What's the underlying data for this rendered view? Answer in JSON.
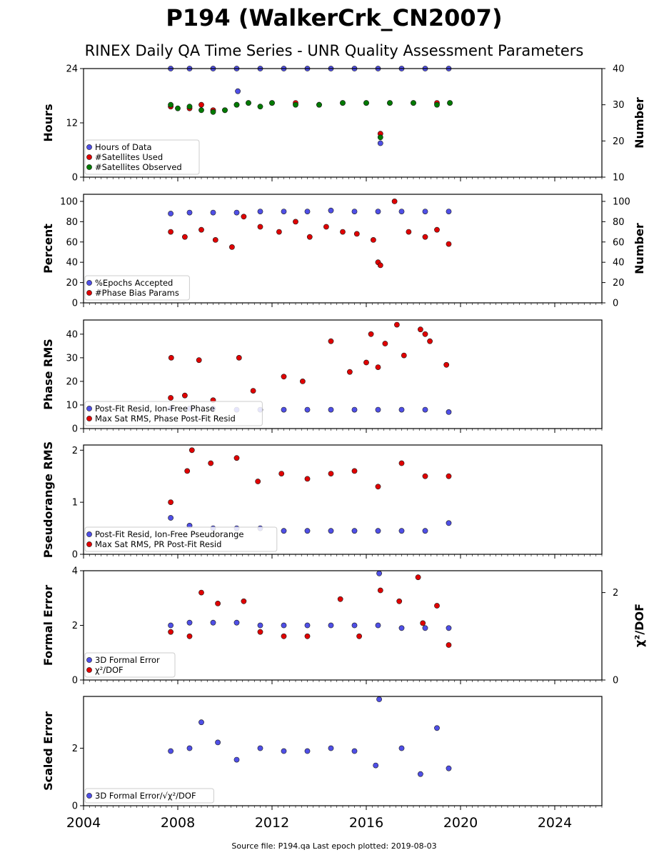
{
  "title": "P194 (WalkerCrk_CN2007)",
  "subtitle": "RINEX Daily QA Time Series - UNR Quality Assessment Parameters",
  "footer": "Source file: P194.qa Last epoch plotted: 2019-08-03",
  "x_axis": {
    "range": [
      2004.0,
      2026.0
    ],
    "ticks": [
      "2004",
      "2008",
      "2012",
      "2016",
      "2020",
      "2024"
    ]
  },
  "panels": [
    {
      "id": "hours",
      "ylabel": "Hours",
      "ylim": [
        0,
        24
      ],
      "yticks": [
        "0",
        "12",
        "24"
      ],
      "y2label": "Number",
      "y2lim": [
        10,
        40
      ],
      "y2ticks": [
        "10",
        "20",
        "30",
        "40"
      ],
      "legend": [
        {
          "label": "Hours of Data",
          "color": "#4f4fe6"
        },
        {
          "label": "#Satellites Used",
          "color": "#e00000"
        },
        {
          "label": "#Satellites Observed",
          "color": "#007a00"
        }
      ]
    },
    {
      "id": "percent",
      "ylabel": "Percent",
      "ylim": [
        0,
        107
      ],
      "yticks": [
        "0",
        "20",
        "40",
        "60",
        "80",
        "100"
      ],
      "y2label": "Number",
      "y2lim": [
        0,
        107
      ],
      "y2ticks": [
        "0",
        "20",
        "40",
        "60",
        "80",
        "100"
      ],
      "legend": [
        {
          "label": "%Epochs Accepted",
          "color": "#4f4fe6"
        },
        {
          "label": "#Phase Bias Params",
          "color": "#e00000"
        }
      ]
    },
    {
      "id": "phase",
      "ylabel": "Phase RMS",
      "ylim": [
        0,
        46
      ],
      "yticks": [
        "0",
        "10",
        "20",
        "30",
        "40"
      ],
      "legend": [
        {
          "label": "Post-Fit Resid, Ion-Free Phase",
          "color": "#4f4fe6"
        },
        {
          "label": "Max Sat RMS, Phase Post-Fit Resid",
          "color": "#e00000"
        }
      ]
    },
    {
      "id": "pseudo",
      "ylabel": "Pseudorange RMS",
      "ylim": [
        0,
        2.1
      ],
      "yticks": [
        "0",
        "1",
        "2"
      ],
      "legend": [
        {
          "label": "Post-Fit Resid, Ion-Free Pseudorange",
          "color": "#4f4fe6"
        },
        {
          "label": "Max Sat RMS, PR Post-Fit Resid",
          "color": "#e00000"
        }
      ]
    },
    {
      "id": "formal",
      "ylabel": "Formal Error",
      "ylim": [
        0,
        4
      ],
      "yticks": [
        "0",
        "2",
        "4"
      ],
      "y2label": "χ²/DOF",
      "y2lim": [
        0,
        2.5
      ],
      "y2ticks": [
        "0",
        "2"
      ],
      "legend": [
        {
          "label": "3D Formal Error",
          "color": "#4f4fe6"
        },
        {
          "label": "χ²/DOF",
          "color": "#e00000"
        }
      ]
    },
    {
      "id": "scaled",
      "ylabel": "Scaled Error",
      "ylim": [
        0,
        3.8
      ],
      "yticks": [
        "0",
        "2"
      ],
      "legend": [
        {
          "label": "3D Formal Error/√χ²/DOF",
          "color": "#4f4fe6"
        }
      ]
    }
  ],
  "chart_data": [
    {
      "type": "scatter",
      "title": "",
      "xlabel": "",
      "ylabel": "Hours",
      "y2label": "Number",
      "xlim": [
        2004.0,
        2026.0
      ],
      "ylim": [
        0,
        24
      ],
      "y2lim": [
        10,
        40
      ],
      "series": [
        {
          "name": "Hours of Data",
          "axis": "left",
          "x": [
            2007.7,
            2008.5,
            2009.5,
            2010.5,
            2010.55,
            2011.5,
            2012.5,
            2013.5,
            2014.5,
            2015.5,
            2016.5,
            2016.6,
            2017.5,
            2018.5,
            2019.5
          ],
          "y": [
            24,
            24,
            24,
            24,
            19.0,
            24,
            24,
            24,
            24,
            24,
            24,
            7.5,
            24,
            24,
            24
          ]
        },
        {
          "name": "#Satellites Used",
          "axis": "right",
          "x": [
            2007.7,
            2008.5,
            2009.0,
            2009.5,
            2010.0,
            2010.5,
            2011.0,
            2012.0,
            2013.0,
            2014.0,
            2015.0,
            2016.0,
            2016.6,
            2017.0,
            2018.0,
            2019.0,
            2019.55
          ],
          "y": [
            29.5,
            29.0,
            30.0,
            28.5,
            28.5,
            30.0,
            30.5,
            30.5,
            30.5,
            30.0,
            30.5,
            30.5,
            22.0,
            30.5,
            30.5,
            30.5,
            30.5
          ]
        },
        {
          "name": "#Satellites Observed",
          "axis": "right",
          "x": [
            2007.7,
            2008.0,
            2008.5,
            2009.0,
            2009.5,
            2010.0,
            2010.5,
            2011.0,
            2011.5,
            2012.0,
            2013.0,
            2014.0,
            2015.0,
            2016.0,
            2016.6,
            2017.0,
            2018.0,
            2019.0,
            2019.55
          ],
          "y": [
            30.0,
            29.0,
            29.5,
            28.5,
            28.0,
            28.5,
            30.0,
            30.5,
            29.5,
            30.5,
            30.0,
            30.0,
            30.5,
            30.5,
            21.0,
            30.5,
            30.5,
            30.0,
            30.5
          ]
        }
      ]
    },
    {
      "type": "scatter",
      "ylabel": "Percent",
      "y2label": "Number",
      "xlim": [
        2004.0,
        2026.0
      ],
      "ylim": [
        0,
        107
      ],
      "series": [
        {
          "name": "%Epochs Accepted",
          "axis": "left",
          "x": [
            2007.7,
            2008.5,
            2009.5,
            2010.5,
            2011.5,
            2012.5,
            2013.5,
            2014.5,
            2015.5,
            2016.5,
            2017.5,
            2018.5,
            2019.5
          ],
          "y": [
            88,
            89,
            89,
            89,
            90,
            90,
            90,
            91,
            90,
            90,
            90,
            90,
            90
          ]
        },
        {
          "name": "#Phase Bias Params",
          "axis": "right",
          "x": [
            2007.7,
            2008.3,
            2009.0,
            2009.6,
            2010.3,
            2010.8,
            2011.5,
            2012.3,
            2013.0,
            2013.6,
            2014.3,
            2015.0,
            2015.6,
            2016.3,
            2016.5,
            2016.6,
            2017.2,
            2017.8,
            2018.5,
            2019.0,
            2019.5
          ],
          "y": [
            70,
            65,
            72,
            62,
            55,
            85,
            75,
            70,
            80,
            65,
            75,
            70,
            68,
            62,
            40,
            37,
            100,
            70,
            65,
            72,
            58
          ]
        }
      ]
    },
    {
      "type": "scatter",
      "ylabel": "Phase RMS",
      "xlim": [
        2004.0,
        2026.0
      ],
      "ylim": [
        0,
        46
      ],
      "series": [
        {
          "name": "Post-Fit Resid, Ion-Free Phase",
          "x": [
            2007.7,
            2008.5,
            2009.5,
            2010.5,
            2011.5,
            2012.5,
            2013.5,
            2014.5,
            2015.5,
            2016.5,
            2017.5,
            2018.5,
            2019.5
          ],
          "y": [
            8.5,
            8.5,
            8.5,
            8.0,
            8.0,
            8.0,
            8.0,
            8.0,
            8.0,
            8.0,
            8.0,
            8.0,
            7.0
          ]
        },
        {
          "name": "Max Sat RMS, Phase Post-Fit Resid",
          "x": [
            2007.7,
            2007.72,
            2008.3,
            2008.9,
            2009.5,
            2010.6,
            2011.2,
            2012.5,
            2013.3,
            2014.5,
            2015.3,
            2016.0,
            2016.2,
            2016.5,
            2016.8,
            2017.3,
            2017.6,
            2018.3,
            2018.5,
            2018.7,
            2019.4
          ],
          "y": [
            13,
            30,
            14,
            29,
            12,
            30,
            16,
            22,
            20,
            37,
            24,
            28,
            40,
            26,
            36,
            44,
            31,
            42,
            40,
            37,
            27
          ]
        }
      ]
    },
    {
      "type": "scatter",
      "ylabel": "Pseudorange RMS",
      "xlim": [
        2004.0,
        2026.0
      ],
      "ylim": [
        0,
        2.1
      ],
      "series": [
        {
          "name": "Post-Fit Resid, Ion-Free Pseudorange",
          "x": [
            2007.7,
            2008.5,
            2009.5,
            2010.5,
            2011.5,
            2012.5,
            2013.5,
            2014.5,
            2015.5,
            2016.5,
            2017.5,
            2018.5,
            2019.5
          ],
          "y": [
            0.7,
            0.55,
            0.5,
            0.5,
            0.5,
            0.45,
            0.45,
            0.45,
            0.45,
            0.45,
            0.45,
            0.45,
            0.6
          ]
        },
        {
          "name": "Max Sat RMS, PR Post-Fit Resid",
          "x": [
            2007.7,
            2008.4,
            2008.6,
            2009.4,
            2010.5,
            2011.4,
            2012.4,
            2013.5,
            2014.5,
            2015.5,
            2016.5,
            2017.5,
            2018.5,
            2019.5
          ],
          "y": [
            1.0,
            1.6,
            2.0,
            1.75,
            1.85,
            1.4,
            1.55,
            1.45,
            1.55,
            1.6,
            1.3,
            1.75,
            1.5,
            1.5
          ]
        }
      ]
    },
    {
      "type": "scatter",
      "ylabel": "Formal Error",
      "y2label": "χ²/DOF",
      "xlim": [
        2004.0,
        2026.0
      ],
      "ylim": [
        0,
        4
      ],
      "y2lim": [
        0,
        2.5
      ],
      "series": [
        {
          "name": "3D Formal Error",
          "axis": "left",
          "x": [
            2007.7,
            2008.5,
            2009.5,
            2010.5,
            2011.5,
            2012.5,
            2013.5,
            2014.5,
            2015.5,
            2016.5,
            2016.55,
            2017.5,
            2018.5,
            2019.5
          ],
          "y": [
            2.0,
            2.1,
            2.1,
            2.1,
            2.0,
            2.0,
            2.0,
            2.0,
            2.0,
            2.0,
            3.9,
            1.9,
            1.9,
            1.9
          ]
        },
        {
          "name": "χ²/DOF",
          "axis": "right",
          "x": [
            2007.7,
            2008.5,
            2009.0,
            2009.7,
            2010.8,
            2011.5,
            2012.5,
            2013.5,
            2014.9,
            2015.7,
            2016.6,
            2017.4,
            2018.2,
            2018.4,
            2019.0,
            2019.5
          ],
          "y": [
            1.1,
            1.0,
            2.0,
            1.75,
            1.8,
            1.1,
            1.0,
            1.0,
            1.85,
            1.0,
            2.05,
            1.8,
            2.35,
            1.3,
            1.7,
            0.8
          ]
        }
      ]
    },
    {
      "type": "scatter",
      "ylabel": "Scaled Error",
      "xlim": [
        2004.0,
        2026.0
      ],
      "ylim": [
        0,
        3.8
      ],
      "series": [
        {
          "name": "3D Formal Error/√χ²/DOF",
          "x": [
            2007.7,
            2008.5,
            2009.0,
            2009.7,
            2010.5,
            2011.5,
            2012.5,
            2013.5,
            2014.5,
            2015.5,
            2016.4,
            2016.55,
            2017.5,
            2018.3,
            2019.0,
            2019.5
          ],
          "y": [
            1.9,
            2.0,
            2.9,
            2.2,
            1.6,
            2.0,
            1.9,
            1.9,
            2.0,
            1.9,
            1.4,
            3.7,
            2.0,
            1.1,
            2.7,
            1.3
          ]
        }
      ]
    }
  ]
}
